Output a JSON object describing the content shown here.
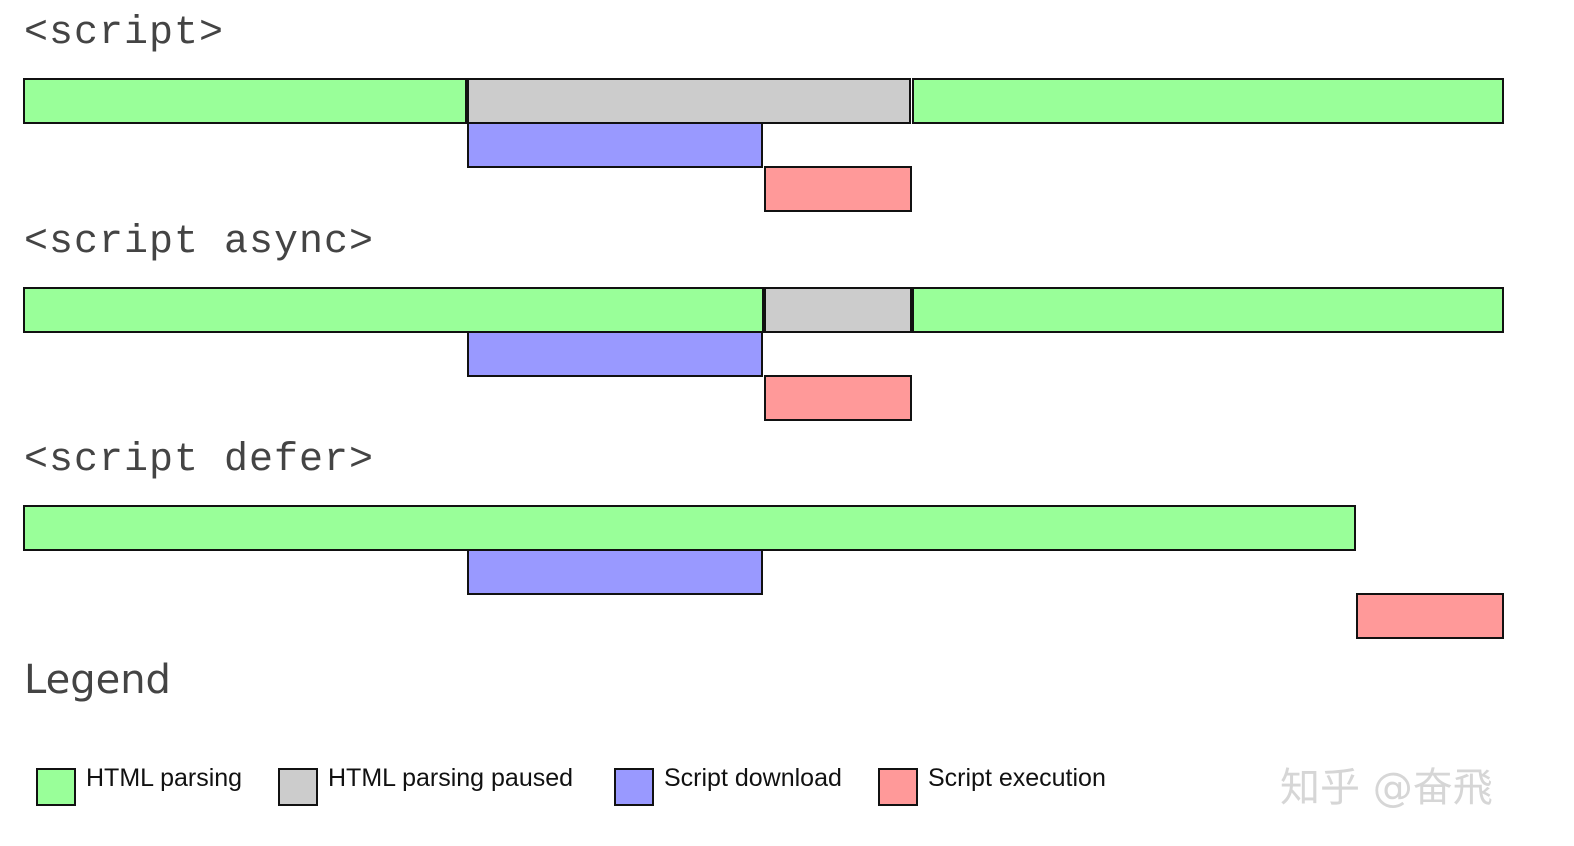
{
  "colors": {
    "html_parsing": "#99ff99",
    "html_parsing_paused": "#cccccc",
    "script_download": "#9999ff",
    "script_execution": "#ff9999"
  },
  "sections": [
    {
      "title": "<script>",
      "segments": [
        {
          "row": 0,
          "kind": "html_parsing",
          "start": 0,
          "end": 30
        },
        {
          "row": 0,
          "kind": "html_parsing_paused",
          "start": 30,
          "end": 60
        },
        {
          "row": 0,
          "kind": "html_parsing",
          "start": 60,
          "end": 100
        },
        {
          "row": 1,
          "kind": "script_download",
          "start": 30,
          "end": 50
        },
        {
          "row": 2,
          "kind": "script_execution",
          "start": 50,
          "end": 60
        }
      ]
    },
    {
      "title": "<script async>",
      "segments": [
        {
          "row": 0,
          "kind": "html_parsing",
          "start": 0,
          "end": 50
        },
        {
          "row": 0,
          "kind": "html_parsing_paused",
          "start": 50,
          "end": 60
        },
        {
          "row": 0,
          "kind": "html_parsing",
          "start": 60,
          "end": 100
        },
        {
          "row": 1,
          "kind": "script_download",
          "start": 30,
          "end": 50
        },
        {
          "row": 2,
          "kind": "script_execution",
          "start": 50,
          "end": 60
        }
      ]
    },
    {
      "title": "<script defer>",
      "segments": [
        {
          "row": 0,
          "kind": "html_parsing",
          "start": 0,
          "end": 90
        },
        {
          "row": 1,
          "kind": "script_download",
          "start": 30,
          "end": 50
        },
        {
          "row": 2,
          "kind": "script_execution",
          "start": 90,
          "end": 100
        }
      ]
    }
  ],
  "legend": {
    "title": "Legend",
    "items": [
      {
        "kind": "html_parsing",
        "label": "HTML parsing"
      },
      {
        "kind": "html_parsing_paused",
        "label": "HTML parsing paused"
      },
      {
        "kind": "script_download",
        "label": "Script download"
      },
      {
        "kind": "script_execution",
        "label": "Script execution"
      }
    ]
  },
  "watermark": "知乎 @奋飛"
}
